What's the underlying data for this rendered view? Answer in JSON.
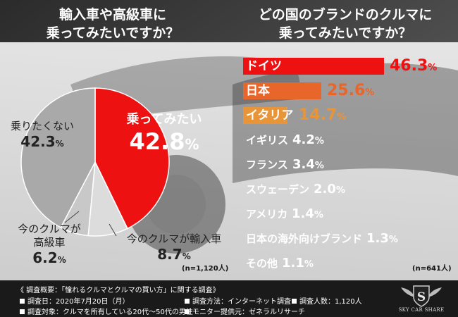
{
  "left_title_line1": "輸入車や高級車に",
  "left_title_line2": "乗ってみたいですか？",
  "right_title_line1": "どの国のブランドのクルマに",
  "right_title_line2": "乗ってみたいですか？",
  "left_n": "(n=1,120人)",
  "right_n": "(n=641人)",
  "chart_data": [
    {
      "type": "pie",
      "title": "輸入車や高級車に乗ってみたいですか？",
      "slices": [
        {
          "label": "乗ってみたい",
          "value": 42.8,
          "display": "42.8",
          "color": "#ee1111"
        },
        {
          "label": "今のクルマが輸入車",
          "value": 8.7,
          "display": "8.7",
          "color": "#dcdcdc"
        },
        {
          "label": "今のクルマが高級車",
          "value": 6.2,
          "display": "6.2",
          "color": "#c8c8c8"
        },
        {
          "label": "乗りたくない",
          "value": 42.3,
          "display": "42.3",
          "color": "#a9a9a9"
        }
      ]
    },
    {
      "type": "bar",
      "title": "どの国のブランドのクルマに乗ってみたいですか？",
      "unit": "%",
      "xlim": [
        0,
        46.3
      ],
      "categories": [
        "ドイツ",
        "日本",
        "イタリア",
        "イギリス",
        "フランス",
        "スウェーデン",
        "アメリカ",
        "日本の海外向けブランド",
        "その他"
      ],
      "values": [
        46.3,
        25.6,
        14.7,
        4.2,
        3.4,
        2.0,
        1.4,
        1.3,
        1.1
      ],
      "display": [
        "46.3",
        "25.6",
        "14.7",
        "4.2",
        "3.4",
        "2.0",
        "1.4",
        "1.3",
        "1.1"
      ],
      "colors": [
        "#ee1111",
        "#e9662a",
        "#e8953a",
        "",
        "",
        "",
        "",
        "",
        ""
      ]
    }
  ],
  "colors": {
    "pie_want": "#ee1111",
    "bar_top1": "#ee1111",
    "bar_top2": "#e9662a",
    "bar_top3": "#e8953a"
  },
  "footer": {
    "title": "《 調査概要：「憧れるクルマとクルマの買い方」に関する調査》",
    "date": "調査日：2020年7月20日（月）",
    "method": "調査方法：インターネット調査",
    "count": "調査人数：1,120人",
    "target": "調査対象：クルマを所有している20代〜50代の男性",
    "provider": "モニター提供元：ゼネラルリサーチ"
  },
  "logo": {
    "letter": "S",
    "text": "SKY CAR SHARE"
  }
}
